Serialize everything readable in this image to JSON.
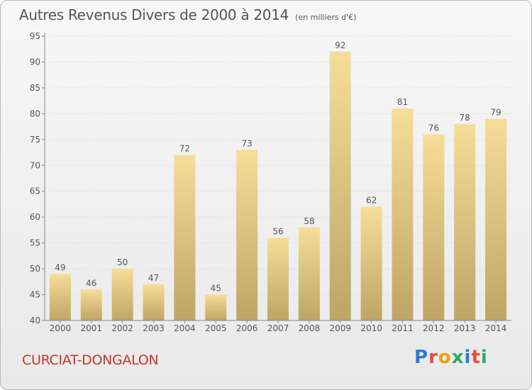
{
  "title": "Autres Revenus Divers de 2000 à 2014",
  "subtitle": "(en milliers d'€)",
  "commune": "CURCIAT-DONGALON",
  "brand": {
    "text": "Proxiti",
    "letter_colors": [
      "#2b7bd3",
      "#e74c3c",
      "#f39c12",
      "#27ae60",
      "#2b7bd3",
      "#e74c3c",
      "#27ae60"
    ]
  },
  "colors": {
    "bar_top": "#f6dd98",
    "bar_bottom": "#bfa565",
    "grid": "#cfcfcf",
    "axis": "#888888",
    "text": "#555555",
    "commune": "#c0392b"
  },
  "chart_data": {
    "type": "bar",
    "categories": [
      "2000",
      "2001",
      "2002",
      "2003",
      "2004",
      "2005",
      "2006",
      "2007",
      "2008",
      "2009",
      "2010",
      "2011",
      "2012",
      "2013",
      "2014"
    ],
    "values": [
      49,
      46,
      50,
      47,
      72,
      45,
      73,
      56,
      58,
      92,
      62,
      81,
      76,
      78,
      79
    ],
    "ylim": [
      40,
      95
    ],
    "yticks": [
      40,
      45,
      50,
      55,
      60,
      65,
      70,
      75,
      80,
      85,
      90,
      95
    ],
    "grid": true,
    "data_labels": true
  }
}
